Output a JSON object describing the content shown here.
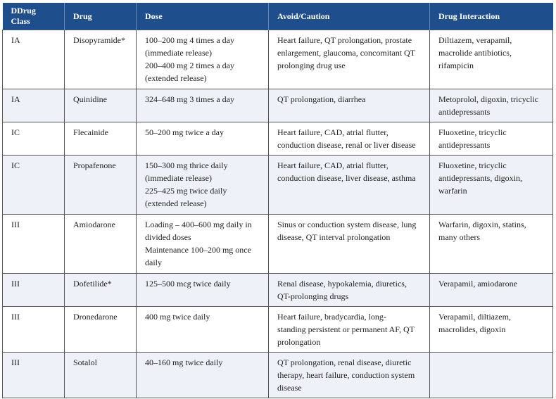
{
  "headers": [
    "DDrug Class",
    "Drug",
    "Dose",
    "Avoid/Caution",
    "Drug Interaction"
  ],
  "rows": [
    {
      "class": "IA",
      "drug": "Disopyramide*",
      "dose": [
        "100–200 mg 4 times a day",
        "(immediate release)",
        "200–400 mg 2 times a day",
        "(extended release)"
      ],
      "avoid": [
        "Heart failure, QT prolongation, prostate",
        "enlargement, glaucoma, concomitant QT",
        "prolonging drug use"
      ],
      "interaction": [
        "Diltiazem, verapamil,",
        "macrolide antibiotics,",
        "rifampicin"
      ]
    },
    {
      "class": "IA",
      "drug": "Quinidine",
      "dose": [
        "324–648 mg 3 times a day"
      ],
      "avoid": [
        "QT prolongation, diarrhea"
      ],
      "interaction": [
        "Metoprolol, digoxin, tricyclic",
        "antidepressants"
      ]
    },
    {
      "class": "IC",
      "drug": "Flecainide",
      "dose": [
        "50–200 mg twice a day"
      ],
      "avoid": [
        "Heart failure, CAD, atrial flutter,",
        "conduction disease, renal or liver disease"
      ],
      "interaction": [
        "Fluoxetine, tricyclic",
        "antidepressants"
      ]
    },
    {
      "class": "IC",
      "drug": "Propafenone",
      "dose": [
        "150–300 mg thrice daily",
        "(immediate release)",
        "225–425 mg twice daily",
        "(extended release)"
      ],
      "avoid": [
        "Heart failure, CAD, atrial flutter,",
        "conduction disease, liver disease, asthma"
      ],
      "interaction": [
        "Fluoxetine, tricyclic",
        "antidepressants, digoxin,",
        "warfarin"
      ]
    },
    {
      "class": "III",
      "drug": "Amiodarone",
      "dose": [
        "Loading – 400–600 mg daily in",
        "divided doses",
        "Maintenance 100–200 mg once",
        "daily"
      ],
      "avoid": [
        "Sinus or conduction system disease, lung",
        "disease, QT interval prolongation"
      ],
      "interaction": [
        "Warfarin, digoxin, statins,",
        "many others"
      ]
    },
    {
      "class": "III",
      "drug": "Dofetilide*",
      "dose": [
        "125–500 mcg twice daily"
      ],
      "avoid": [
        "Renal disease, hypokalemia, diuretics,",
        "QT-prolonging drugs"
      ],
      "interaction": [
        "Verapamil, amiodarone"
      ]
    },
    {
      "class": "III",
      "drug": "Dronedarone",
      "dose": [
        "400 mg twice daily"
      ],
      "avoid": [
        "Heart failure, bradycardia, long-",
        "standing persistent or permanent AF, QT",
        "prolongation"
      ],
      "interaction": [
        "Verapamil, diltiazem,",
        "macrolides, digoxin"
      ]
    },
    {
      "class": "III",
      "drug": "Sotalol",
      "dose": [
        "40–160 mg twice daily"
      ],
      "avoid": [
        "QT prolongation, renal disease, diuretic",
        "therapy, heart failure, conduction system",
        "disease"
      ],
      "interaction": []
    }
  ]
}
